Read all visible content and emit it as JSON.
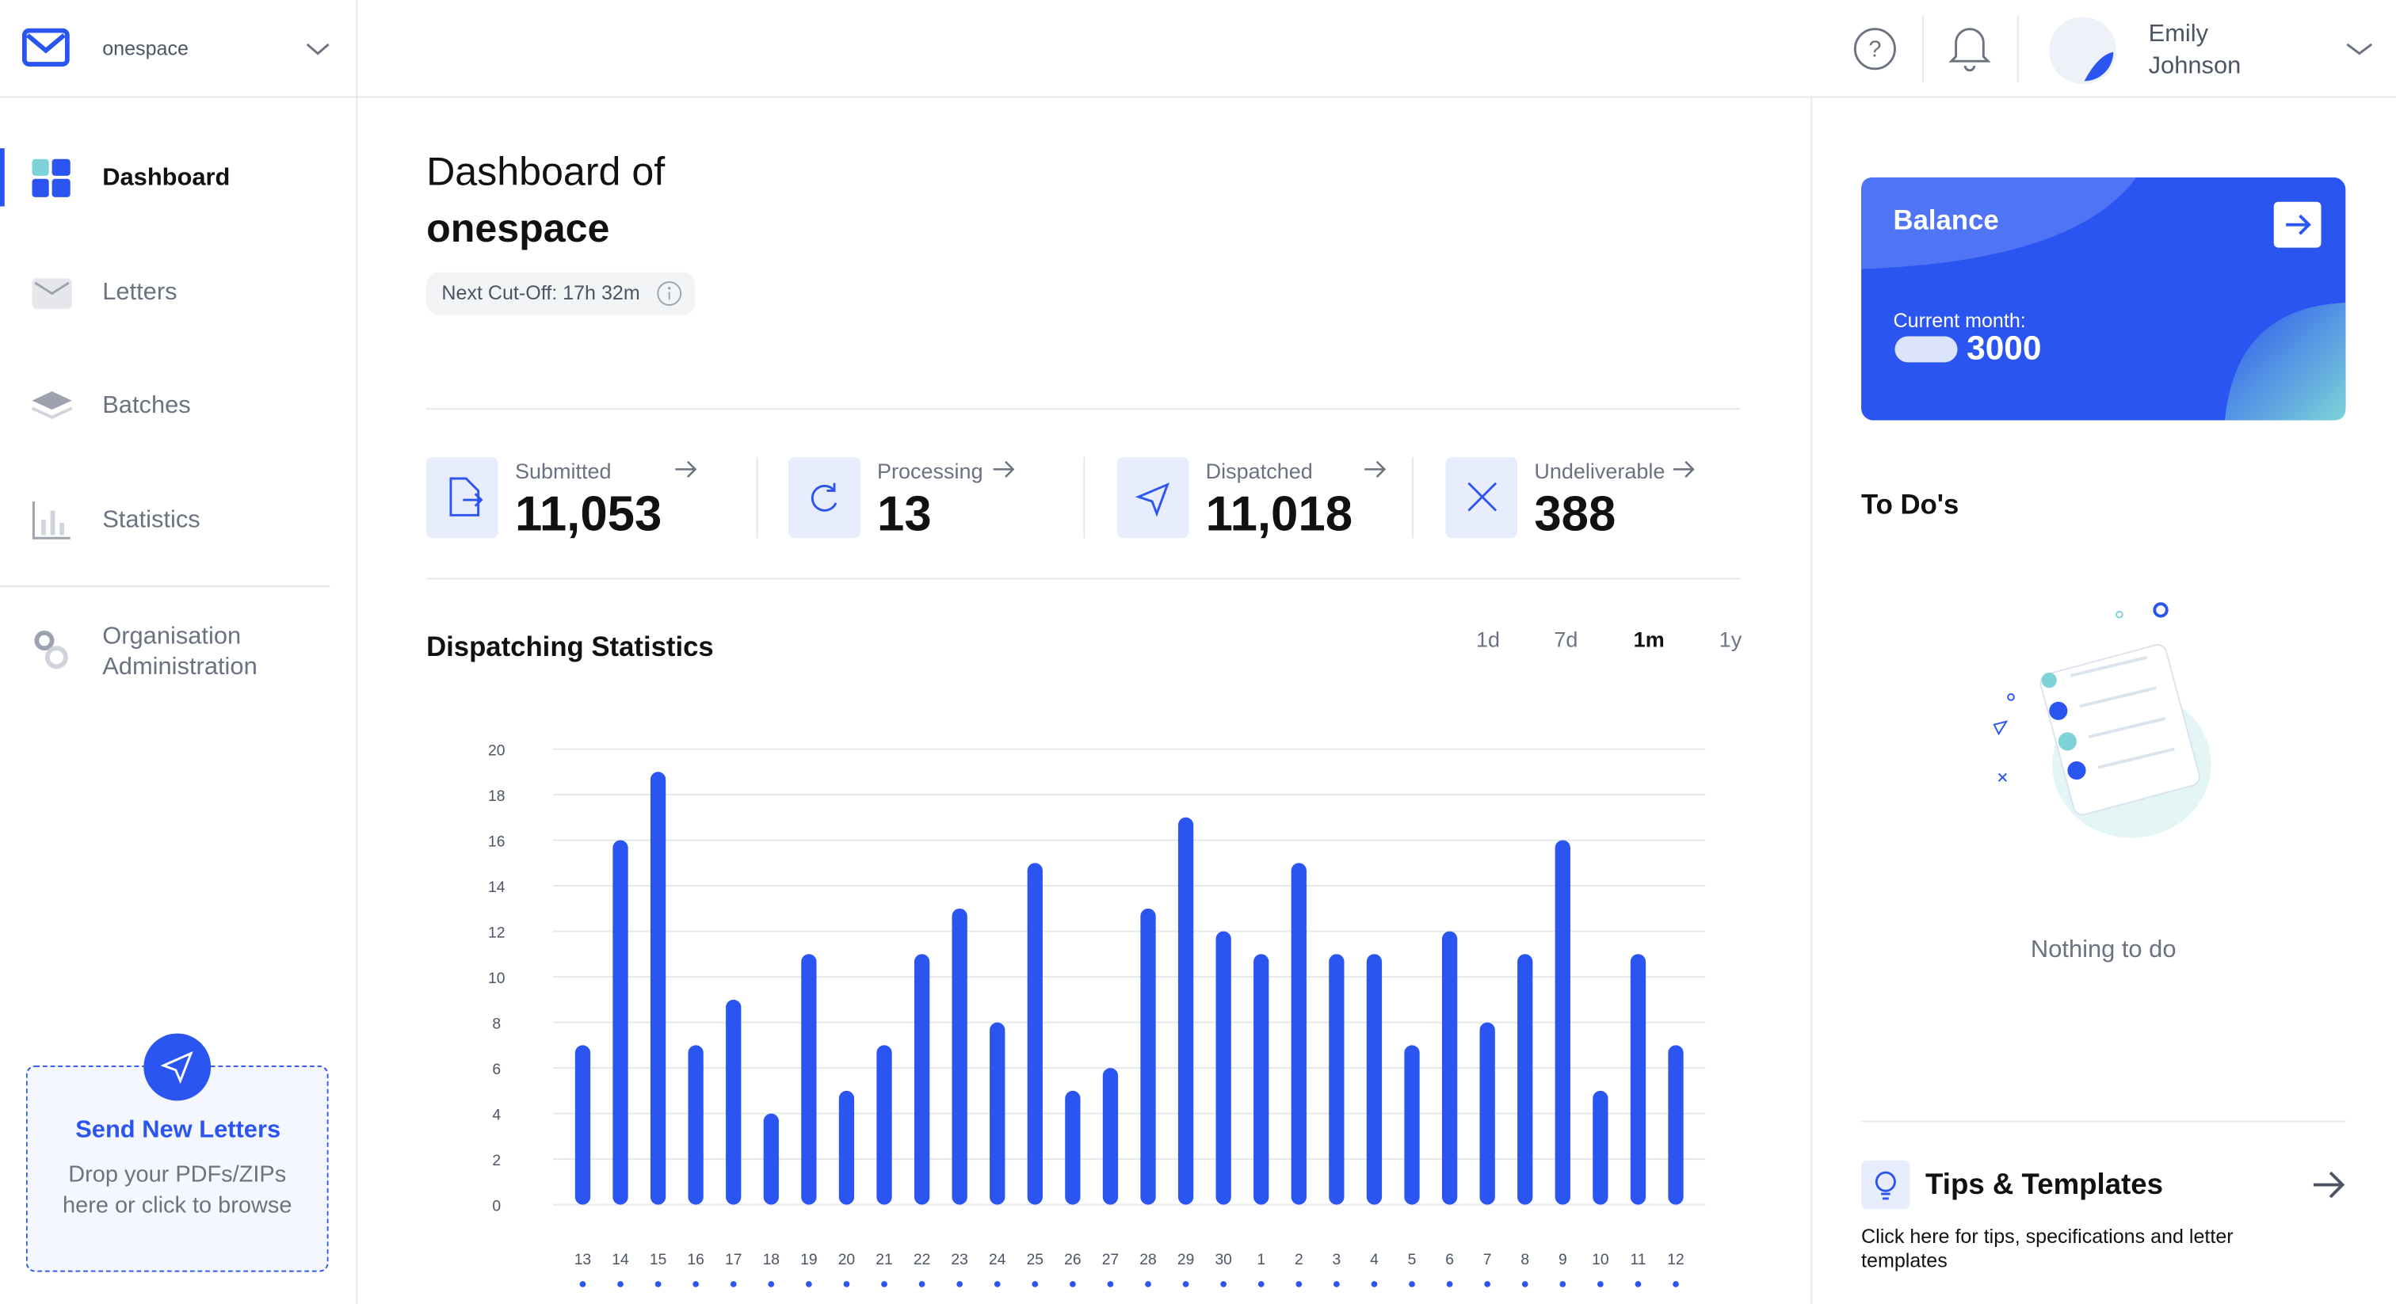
{
  "brand": "onespace",
  "nav": [
    "Dashboard",
    "Letters",
    "Batches",
    "Statistics",
    "Organisation Administration"
  ],
  "upload": {
    "title": "Send New Letters",
    "text": "Drop your PDFs/ZIPs here or click to browse"
  },
  "user_name": "Emily Johnson",
  "heading": {
    "prefix": "Dashboard of",
    "name": "onespace"
  },
  "cutoff": "Next Cut-Off: 17h 32m",
  "stats": [
    {
      "label": "Submitted",
      "value": "11,053"
    },
    {
      "label": "Processing",
      "value": "13"
    },
    {
      "label": "Dispatched",
      "value": "11,018"
    },
    {
      "label": "Undeliverable",
      "value": "388"
    }
  ],
  "period_options": [
    "1d",
    "7d",
    "1m",
    "1y"
  ],
  "chart_data": {
    "type": "bar",
    "title": "Dispatching Statistics",
    "color": "#2b55f0",
    "categories": [
      "13",
      "14",
      "15",
      "16",
      "17",
      "18",
      "19",
      "20",
      "21",
      "22",
      "23",
      "24",
      "25",
      "26",
      "27",
      "28",
      "29",
      "30",
      "1",
      "2",
      "3",
      "4",
      "5",
      "6",
      "7",
      "8",
      "9",
      "10",
      "11",
      "12"
    ],
    "values": [
      7,
      16,
      19,
      7,
      9,
      4,
      11,
      5,
      7,
      11,
      13,
      8,
      15,
      5,
      6,
      13,
      17,
      12,
      11,
      15,
      11,
      11,
      7,
      12,
      8,
      11,
      16,
      5,
      11,
      7
    ],
    "ylim": [
      0,
      20
    ],
    "yticks": [
      0,
      2,
      4,
      6,
      8,
      10,
      12,
      14,
      16,
      18,
      20
    ],
    "grid": true
  },
  "balance": {
    "title": "Balance",
    "label": "Current month:",
    "amount": "3000"
  },
  "todo": {
    "title": "To Do's",
    "empty": "Nothing to do"
  },
  "tips": {
    "title": "Tips & Templates",
    "text": "Click here for tips, specifications and letter templates"
  }
}
